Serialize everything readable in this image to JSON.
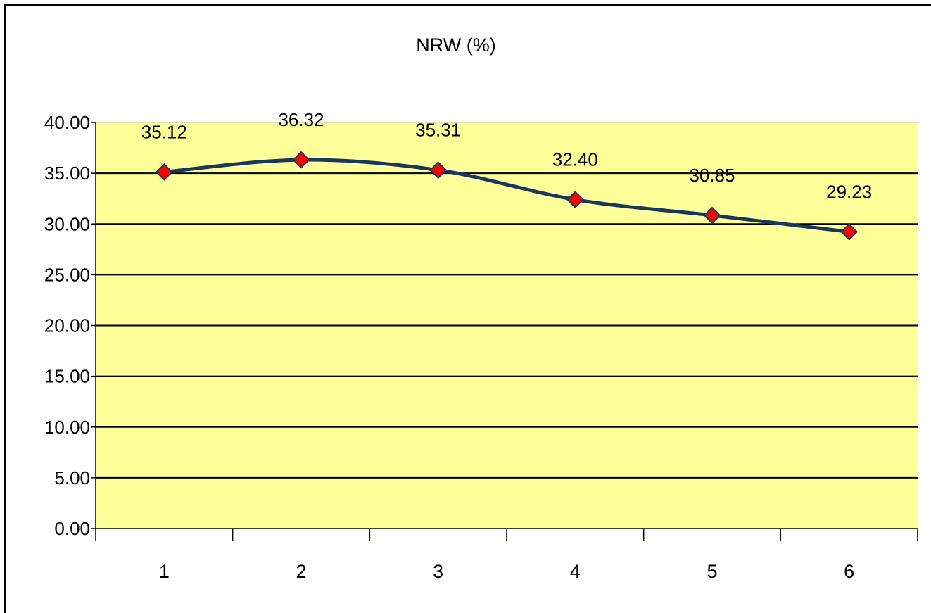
{
  "chart_data": {
    "type": "line",
    "title": "NRW (%)",
    "xlabel": "",
    "ylabel": "",
    "categories": [
      "1",
      "2",
      "3",
      "4",
      "5",
      "6"
    ],
    "series": [
      {
        "values": [
          35.12,
          36.32,
          35.31,
          32.4,
          30.85,
          29.23
        ]
      }
    ],
    "data_labels": [
      "35.12",
      "36.32",
      "35.31",
      "32.40",
      "30.85",
      "29.23"
    ],
    "y_ticks": [
      "0.00",
      "5.00",
      "10.00",
      "15.00",
      "20.00",
      "25.00",
      "30.00",
      "35.00",
      "40.00"
    ],
    "ylim": [
      0,
      40
    ],
    "grid": true,
    "legend": "none",
    "colors": {
      "plot_background": "#ffff99",
      "line": "#17375e",
      "marker_fill": "#ff0000",
      "marker_edge": "#17375e",
      "gridline": "#000000"
    }
  }
}
